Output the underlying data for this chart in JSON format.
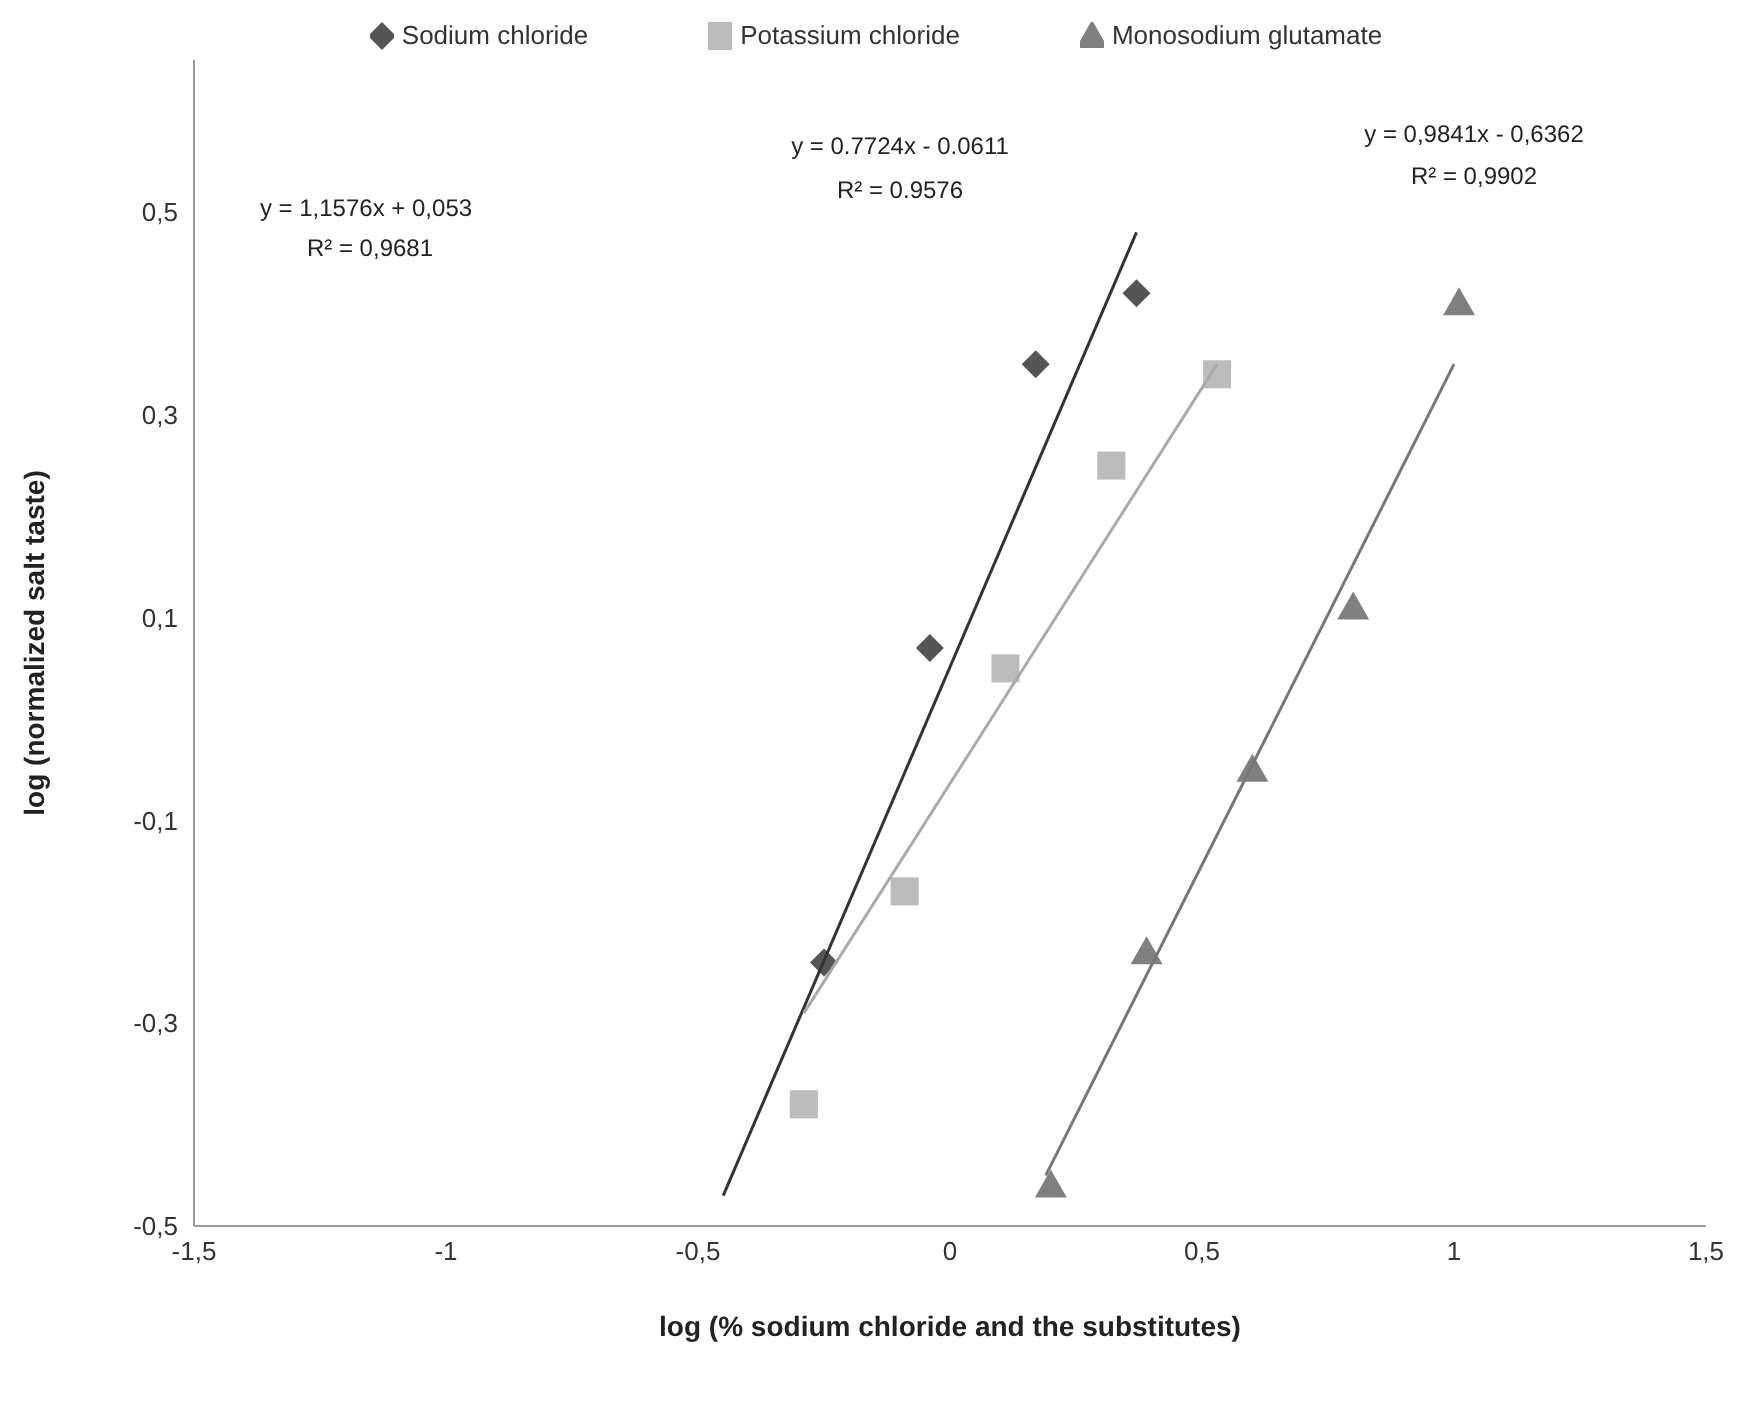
{
  "chart_data": {
    "type": "scatter",
    "xlabel": "log (% sodium chloride and the substitutes)",
    "ylabel": "log (normalized salt taste)",
    "xlim": [
      -1.5,
      1.5
    ],
    "ylim": [
      -0.5,
      0.65
    ],
    "xticks": [
      {
        "value": -1.5,
        "label": "-1,5"
      },
      -1,
      {
        "value": -0.5,
        "label": "-0,5"
      },
      0,
      {
        "value": 0.5,
        "label": "0,5"
      },
      1,
      {
        "value": 1.5,
        "label": "1,5"
      }
    ],
    "yticks": [
      {
        "value": -0.5,
        "label": "-0,5"
      },
      {
        "value": -0.3,
        "label": "-0,3"
      },
      {
        "value": -0.1,
        "label": "-0,1"
      },
      {
        "value": 0.1,
        "label": "0,1"
      },
      {
        "value": 0.3,
        "label": "0,3"
      },
      {
        "value": 0.5,
        "label": "0,5"
      }
    ],
    "grid": false,
    "legend": "top",
    "series": [
      {
        "name": "Sodium chloride",
        "marker": "diamond",
        "color": "#555555",
        "x": [
          -0.25,
          -0.04,
          0.17,
          0.37
        ],
        "values": [
          -0.24,
          0.07,
          0.35,
          0.42
        ]
      },
      {
        "name": "Potassium chloride",
        "marker": "square",
        "color": "#bbbbbb",
        "x": [
          -0.29,
          -0.09,
          0.11,
          0.32,
          0.53
        ],
        "values": [
          -0.38,
          -0.17,
          0.05,
          0.25,
          0.34
        ]
      },
      {
        "name": "Monosodium glutamate",
        "marker": "triangle",
        "color": "#808080",
        "x": [
          0.2,
          0.39,
          0.6,
          0.8,
          1.01
        ],
        "values": [
          -0.46,
          -0.23,
          -0.05,
          0.11,
          0.41
        ]
      },
      {
        "type": "line",
        "marker": "none",
        "color": "#333333",
        "x": [
          -0.45,
          0.37
        ],
        "values": [
          -0.47,
          0.48
        ]
      },
      {
        "type": "line",
        "marker": "none",
        "color": "#aaaaaa",
        "x": [
          -0.29,
          0.53
        ],
        "values": [
          -0.29,
          0.35
        ]
      },
      {
        "type": "line",
        "marker": "none",
        "color": "#777777",
        "x": [
          0.19,
          1.0
        ],
        "values": [
          -0.45,
          0.35
        ]
      }
    ],
    "annotations": [
      "y = 1,1576x + 0,053",
      "R² = 0,9681",
      "y = 0.7724x - 0.0611",
      "R² = 0.9576",
      "y = 0,9841x - 0,6362",
      "R² = 0,9902"
    ]
  }
}
